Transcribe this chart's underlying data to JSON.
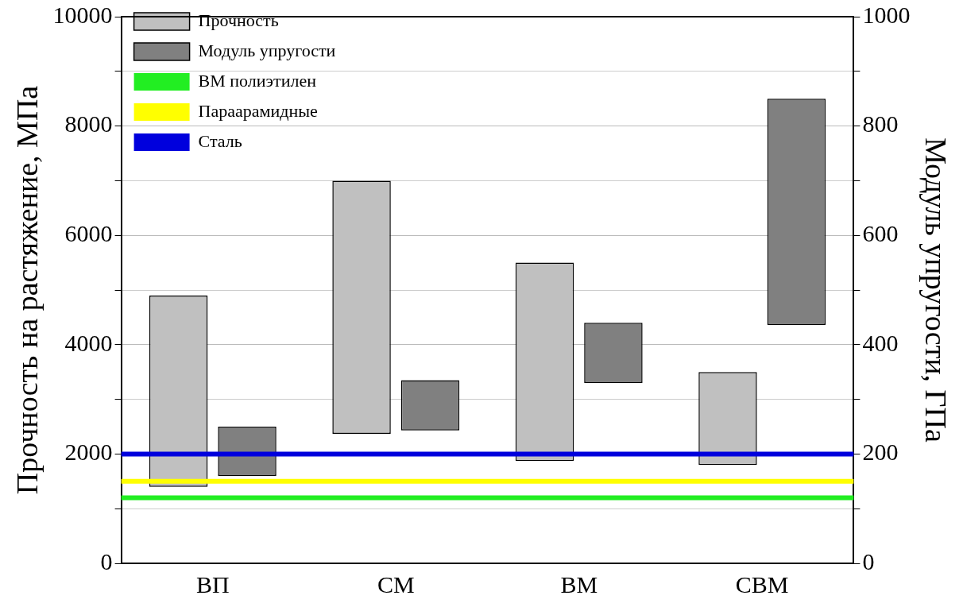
{
  "chart_data": {
    "type": "bar",
    "categories": [
      "ВП",
      "СМ",
      "ВМ",
      "СВМ"
    ],
    "ylabel": "Прочность на растяжение, МПа",
    "y2label": "Модуль упругости, ГПа",
    "series": [
      {
        "name": "Прочность",
        "color": "#c0c0c0",
        "base": [
          1400,
          2370,
          1870,
          1800
        ],
        "values": [
          3500,
          4630,
          3630,
          1700
        ]
      },
      {
        "name": "Модуль упругости",
        "color": "#808080",
        "axis": "y2",
        "base": [
          160,
          243,
          330,
          436
        ],
        "values": [
          90,
          92,
          110,
          414
        ]
      }
    ],
    "ylim": [
      0,
      10000
    ],
    "yticks": [
      0,
      {
        "value": 1000,
        "label": null
      },
      2000,
      {
        "value": 3000,
        "label": null
      },
      4000,
      {
        "value": 5000,
        "label": null
      },
      6000,
      {
        "value": 7000,
        "label": null
      },
      8000,
      {
        "value": 9000,
        "label": null
      },
      10000
    ],
    "y2lim": [
      0,
      1000
    ],
    "y2ticks": [
      0,
      {
        "value": 100,
        "label": null
      },
      200,
      {
        "value": 300,
        "label": null
      },
      400,
      {
        "value": 500,
        "label": null
      },
      600,
      {
        "value": 700,
        "label": null
      },
      800,
      {
        "value": 900,
        "label": null
      },
      1000
    ],
    "ref_lines": [
      {
        "axis": "y",
        "value": 1200,
        "label": "ВМ полиэтилен",
        "color": "#22ee22"
      },
      {
        "axis": "y",
        "value": 1500,
        "label": "Параарамидные",
        "color": "#ffff00"
      },
      {
        "axis": "y",
        "value": 2000,
        "label": "Сталь",
        "color": "#0000dd"
      }
    ],
    "grid": "y",
    "legend": "top left"
  }
}
